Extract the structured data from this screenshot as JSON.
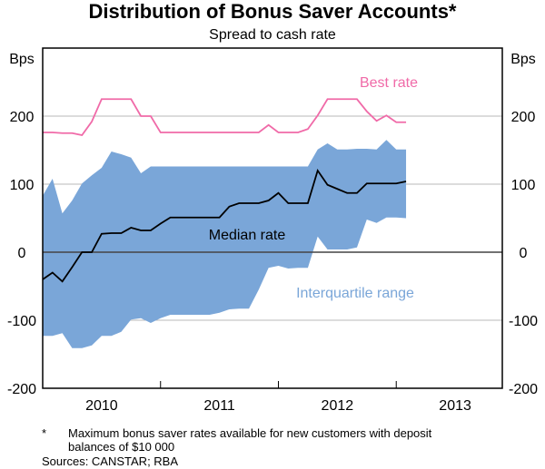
{
  "chart_data": {
    "type": "line",
    "title": "Distribution of Bonus Saver Accounts*",
    "subtitle": "Spread to cash rate",
    "ylabel_left": "Bps",
    "ylabel_right": "Bps",
    "ylim": [
      -200,
      300
    ],
    "yticks": [
      -200,
      -100,
      0,
      100,
      200
    ],
    "ytick_labels": [
      "-200",
      "-100",
      "0",
      "100",
      "200"
    ],
    "xlim": [
      2010.0,
      2013.9
    ],
    "xtick_labels": [
      "2010",
      "2011",
      "2012",
      "2013"
    ],
    "grid": true,
    "x": [
      "2010-01",
      "2010-02",
      "2010-03",
      "2010-04",
      "2010-05",
      "2010-06",
      "2010-07",
      "2010-08",
      "2010-09",
      "2010-10",
      "2010-11",
      "2010-12",
      "2011-01",
      "2011-02",
      "2011-03",
      "2011-04",
      "2011-05",
      "2011-06",
      "2011-07",
      "2011-08",
      "2011-09",
      "2011-10",
      "2011-11",
      "2011-12",
      "2012-01",
      "2012-02",
      "2012-03",
      "2012-04",
      "2012-05",
      "2012-06",
      "2012-07",
      "2012-08",
      "2012-09",
      "2012-10",
      "2012-11",
      "2012-12",
      "2013-01",
      "2013-02"
    ],
    "series": [
      {
        "name": "Best rate",
        "type": "line",
        "color": "#f06aa8",
        "values": [
          176,
          176,
          175,
          175,
          172,
          192,
          225,
          225,
          225,
          225,
          200,
          200,
          176,
          176,
          176,
          176,
          176,
          176,
          176,
          176,
          176,
          176,
          176,
          187,
          176,
          176,
          176,
          181,
          201,
          225,
          225,
          225,
          225,
          207,
          193,
          201,
          191,
          191
        ]
      },
      {
        "name": "Median rate",
        "type": "line",
        "color": "#000000",
        "values": [
          -40,
          -30,
          -43,
          -22,
          0,
          0,
          27,
          28,
          28,
          36,
          32,
          32,
          42,
          51,
          51,
          51,
          51,
          51,
          51,
          67,
          72,
          72,
          72,
          76,
          87,
          72,
          72,
          72,
          120,
          99,
          93,
          87,
          87,
          101,
          101,
          101,
          101,
          104
        ]
      },
      {
        "name": "Interquartile range",
        "type": "area",
        "color": "#7aa6d8",
        "upper": [
          83,
          108,
          57,
          76,
          101,
          113,
          124,
          148,
          144,
          139,
          116,
          126,
          126,
          126,
          126,
          126,
          126,
          126,
          126,
          126,
          126,
          126,
          126,
          126,
          126,
          126,
          126,
          126,
          151,
          160,
          151,
          151,
          152,
          152,
          151,
          165,
          151,
          151
        ],
        "lower": [
          -123,
          -123,
          -119,
          -141,
          -141,
          -137,
          -123,
          -123,
          -117,
          -99,
          -97,
          -104,
          -97,
          -92,
          -92,
          -92,
          -92,
          -92,
          -89,
          -84,
          -83,
          -83,
          -55,
          -23,
          -20,
          -24,
          -23,
          -23,
          23,
          4,
          4,
          4,
          7,
          48,
          43,
          51,
          51,
          50
        ]
      }
    ]
  },
  "footnotes": {
    "star": "*",
    "note_line1": "Maximum bonus saver rates available for new customers with deposit",
    "note_line2": "balances of $10 000",
    "sources": "Sources: CANSTAR; RBA"
  }
}
